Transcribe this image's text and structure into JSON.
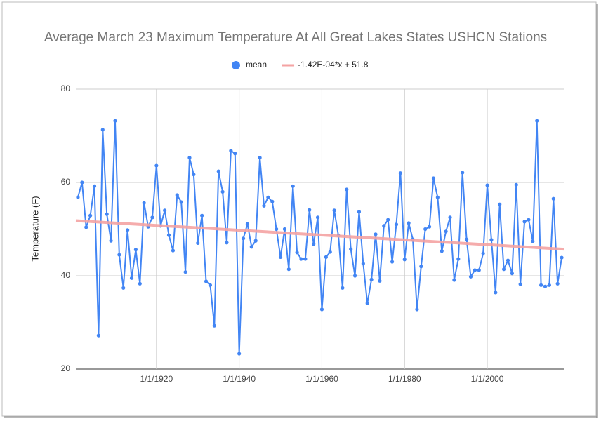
{
  "chart_data": {
    "type": "line",
    "title": "Average March 23 Maximum Temperature At All Great Lakes States USHCN Stations",
    "y_label": "Temperature (F)",
    "x": [
      1901,
      1902,
      1903,
      1904,
      1905,
      1906,
      1907,
      1908,
      1909,
      1910,
      1911,
      1912,
      1913,
      1914,
      1915,
      1916,
      1917,
      1918,
      1919,
      1920,
      1921,
      1922,
      1923,
      1924,
      1925,
      1926,
      1927,
      1928,
      1929,
      1930,
      1931,
      1932,
      1933,
      1934,
      1935,
      1936,
      1937,
      1938,
      1939,
      1940,
      1941,
      1942,
      1943,
      1944,
      1945,
      1946,
      1947,
      1948,
      1949,
      1950,
      1951,
      1952,
      1953,
      1954,
      1955,
      1956,
      1957,
      1958,
      1959,
      1960,
      1961,
      1962,
      1963,
      1964,
      1965,
      1966,
      1967,
      1968,
      1969,
      1970,
      1971,
      1972,
      1973,
      1974,
      1975,
      1976,
      1977,
      1978,
      1979,
      1980,
      1981,
      1982,
      1983,
      1984,
      1985,
      1986,
      1987,
      1988,
      1989,
      1990,
      1991,
      1992,
      1993,
      1994,
      1995,
      1996,
      1997,
      1998,
      1999,
      2000,
      2001,
      2002,
      2003,
      2004,
      2005,
      2006,
      2007,
      2008,
      2009,
      2010,
      2011,
      2012,
      2013,
      2014,
      2015,
      2016,
      2017,
      2018
    ],
    "series": [
      {
        "name": "mean",
        "color": "#4285f4",
        "values": [
          56.8,
          60,
          50.4,
          52.9,
          59.2,
          27.2,
          71.3,
          53.2,
          47.5,
          73.2,
          44.5,
          37.4,
          49.8,
          39.5,
          45.6,
          38.3,
          55.6,
          50.5,
          52.5,
          63.6,
          50.7,
          54,
          48.7,
          45.4,
          57.3,
          55.8,
          40.8,
          65.3,
          61.7,
          47,
          52.9,
          38.8,
          38,
          29.3,
          62.4,
          58,
          47.1,
          66.8,
          66.2,
          23.3,
          48,
          51.1,
          46.2,
          47.5,
          65.3,
          55,
          56.8,
          55.9,
          50,
          44,
          50,
          41.4,
          59.2,
          45,
          43.6,
          43.6,
          54.1,
          46.8,
          52.5,
          32.8,
          44,
          45.1,
          54,
          48.6,
          37.4,
          58.5,
          45.7,
          40,
          53.7,
          42.6,
          34.1,
          39.2,
          48.9,
          38.9,
          50.7,
          52,
          43,
          51,
          62,
          43.5,
          51.3,
          47.8,
          32.8,
          42,
          50,
          50.5,
          60.9,
          56.8,
          45.3,
          49.5,
          52.5,
          39.1,
          43.6,
          62.1,
          47.8,
          39.8,
          41.2,
          41.2,
          44.8,
          59.4,
          47.7,
          36.4,
          55.3,
          41.4,
          43.3,
          40.5,
          59.5,
          38.2,
          51.6,
          52,
          47.4,
          73.2,
          38,
          37.7,
          38,
          56.5,
          38.3,
          43.9
        ]
      },
      {
        "name": "-1.42E-04*x + 51.8",
        "color": "#f4a3a3",
        "x": [
          1900.5,
          2018.5
        ],
        "values": [
          51.8,
          45.7
        ]
      }
    ],
    "xlim": [
      1900.5,
      2018.5
    ],
    "xticks": [
      {
        "value": 1920,
        "label": "1/1/1920"
      },
      {
        "value": 1940,
        "label": "1/1/1940"
      },
      {
        "value": 1960,
        "label": "1/1/1960"
      },
      {
        "value": 1980,
        "label": "1/1/1980"
      },
      {
        "value": 2000,
        "label": "1/1/2000"
      }
    ],
    "ylim": [
      20,
      80
    ],
    "yticks": [
      20,
      40,
      60,
      80
    ],
    "grid": true,
    "legend": "top"
  }
}
